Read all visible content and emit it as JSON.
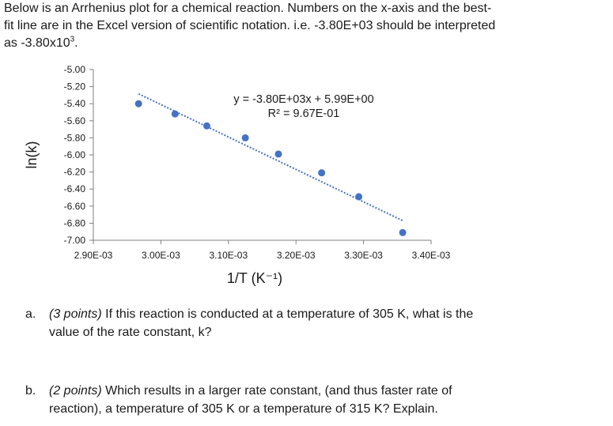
{
  "intro": {
    "line1": "Below is an Arrhenius plot for a chemical reaction. Numbers on the x-axis and the best-",
    "line2": "fit line are in the Excel version of scientific notation. i.e. -3.80E+03 should be interpreted",
    "line3_prefix": "as -3.80x10",
    "line3_exp": "3",
    "line3_suffix": "."
  },
  "chart_data": {
    "type": "scatter",
    "xlabel": "1/T (K⁻¹)",
    "ylabel": "ln(k)",
    "xlim": [
      0.0029,
      0.0034
    ],
    "ylim": [
      -7.0,
      -5.0
    ],
    "x_tick_labels": [
      "2.90E-03",
      "3.00E-03",
      "3.10E-03",
      "3.20E-03",
      "3.30E-03",
      "3.40E-03"
    ],
    "x_ticks": [
      0.0029,
      0.003,
      0.0031,
      0.0032,
      0.0033,
      0.0034
    ],
    "y_tick_labels": [
      "-5.00",
      "-5.20",
      "-5.40",
      "-5.60",
      "-5.80",
      "-6.00",
      "-6.20",
      "-6.40",
      "-6.60",
      "-6.80",
      "-7.00"
    ],
    "y_ticks": [
      -5.0,
      -5.2,
      -5.4,
      -5.6,
      -5.8,
      -6.0,
      -6.2,
      -6.4,
      -6.6,
      -6.8,
      -7.0
    ],
    "grid": false,
    "series": [
      {
        "x": [
          0.002967,
          0.003021,
          0.003068,
          0.003125,
          0.003174,
          0.003238,
          0.003293,
          0.003358
        ],
        "y": [
          -5.4,
          -5.52,
          -5.66,
          -5.8,
          -5.99,
          -6.21,
          -6.49,
          -6.91
        ]
      }
    ],
    "trendline": {
      "style": "dotted",
      "x_start": 0.002967,
      "x_end": 0.003358,
      "slope": -3800,
      "intercept": 5.99,
      "equation": "y = -3.80E+03x + 5.99E+00",
      "r2": "R² = 9.67E-01"
    },
    "colors": {
      "marker": "#4472c4",
      "trendline": "#4472c4",
      "axis": "#7f7f7f"
    }
  },
  "questions": {
    "a": {
      "letter": "a.",
      "points": "(3 points)",
      "text_line1": " If this reaction is conducted at a temperature of 305 K, what is the",
      "text_line2": "value of the rate constant, k?"
    },
    "b": {
      "letter": "b.",
      "points": "(2 points)",
      "text_line1": " Which results in a larger rate constant, (and thus faster rate of",
      "text_line2": "reaction), a temperature of 305 K or a temperature of 315 K? Explain."
    }
  }
}
